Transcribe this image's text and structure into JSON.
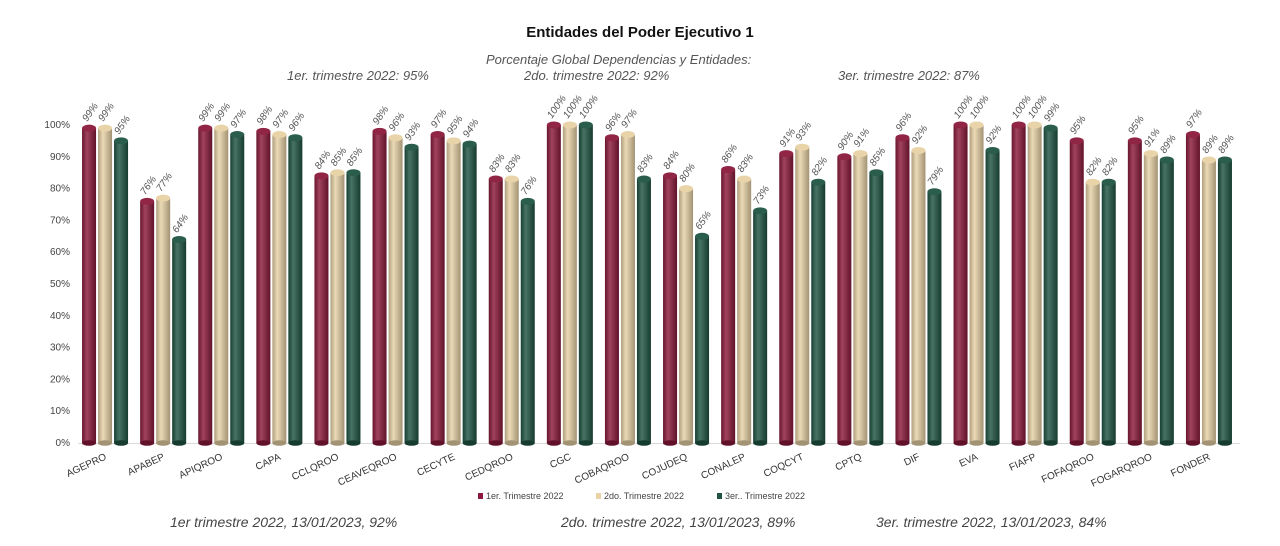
{
  "chart_data": {
    "type": "bar",
    "title": "Entidades del Poder Ejecutivo 1",
    "subtitle": "Porcentaje Global  Dependencias y Entidades:",
    "summary_labels": [
      "1er. trimestre  2022: 95%",
      "2do. trimestre 2022: 92%",
      "3er. trimestre 2022: 87%"
    ],
    "footer_labels": [
      "1er trimestre  2022,  13/01/2023, 92%",
      "2do. trimestre 2022, 13/01/2023, 89%",
      "3er. trimestre 2022, 13/01/2023, 84%"
    ],
    "categories": [
      "AGEPRO",
      "APABEP",
      "APIQROO",
      "CAPA",
      "CCLQROO",
      "CEAVEQROO",
      "CECYTE",
      "CEDQROO",
      "CGC",
      "COBAQROO",
      "COJUDEQ",
      "CONALEP",
      "COQCYT",
      "CPTQ",
      "DIF",
      "EVA",
      "FIAFP",
      "FOFAQROO",
      "FOGARQROO",
      "FONDER"
    ],
    "series": [
      {
        "name": "1er. Trimestre 2022",
        "color": "#8b1a3c",
        "values": [
          99,
          76,
          99,
          98,
          84,
          98,
          97,
          83,
          100,
          96,
          84,
          86,
          91,
          90,
          96,
          100,
          100,
          95,
          95,
          97
        ]
      },
      {
        "name": "2do. Trimestre 2022",
        "color": "#e8d2a6",
        "values": [
          99,
          77,
          99,
          97,
          85,
          96,
          95,
          83,
          100,
          97,
          80,
          83,
          93,
          91,
          92,
          100,
          100,
          82,
          91,
          89
        ]
      },
      {
        "name": "3er.. Trimestre 2022",
        "color": "#1f5443",
        "values": [
          95,
          64,
          97,
          96,
          85,
          93,
          94,
          76,
          100,
          83,
          65,
          73,
          82,
          85,
          79,
          92,
          99,
          82,
          89,
          89
        ]
      }
    ],
    "yticks": [
      "0%",
      "10%",
      "20%",
      "30%",
      "40%",
      "50%",
      "60%",
      "70%",
      "80%",
      "90%",
      "100%"
    ],
    "ylim": [
      0,
      100
    ],
    "legend_position": "bottom",
    "grid": false
  }
}
